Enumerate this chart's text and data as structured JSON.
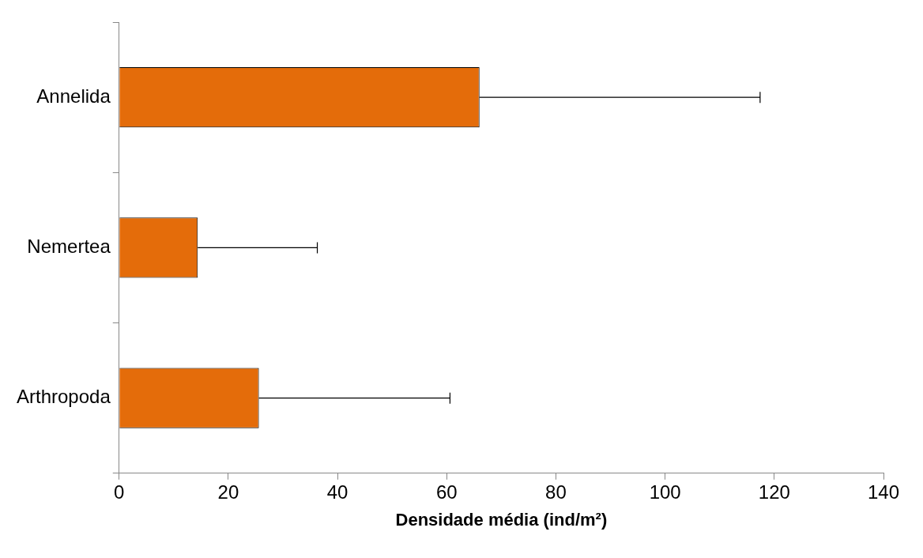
{
  "chart_data": {
    "type": "bar",
    "orientation": "horizontal",
    "categories": [
      "Annelida",
      "Nemertea",
      "Arthropoda"
    ],
    "values": [
      66,
      14.4,
      25.6
    ],
    "color": "#e46c0a",
    "errors": [
      [
        66,
        117.4
      ],
      [
        14.4,
        36.3
      ],
      [
        25.6,
        60.6
      ]
    ],
    "xlabel": "Densidade média (ind/m²)",
    "xlim": [
      0,
      140
    ],
    "xticks": [
      0,
      20,
      40,
      60,
      80,
      100,
      120,
      140
    ],
    "grid": false,
    "legend": false
  }
}
